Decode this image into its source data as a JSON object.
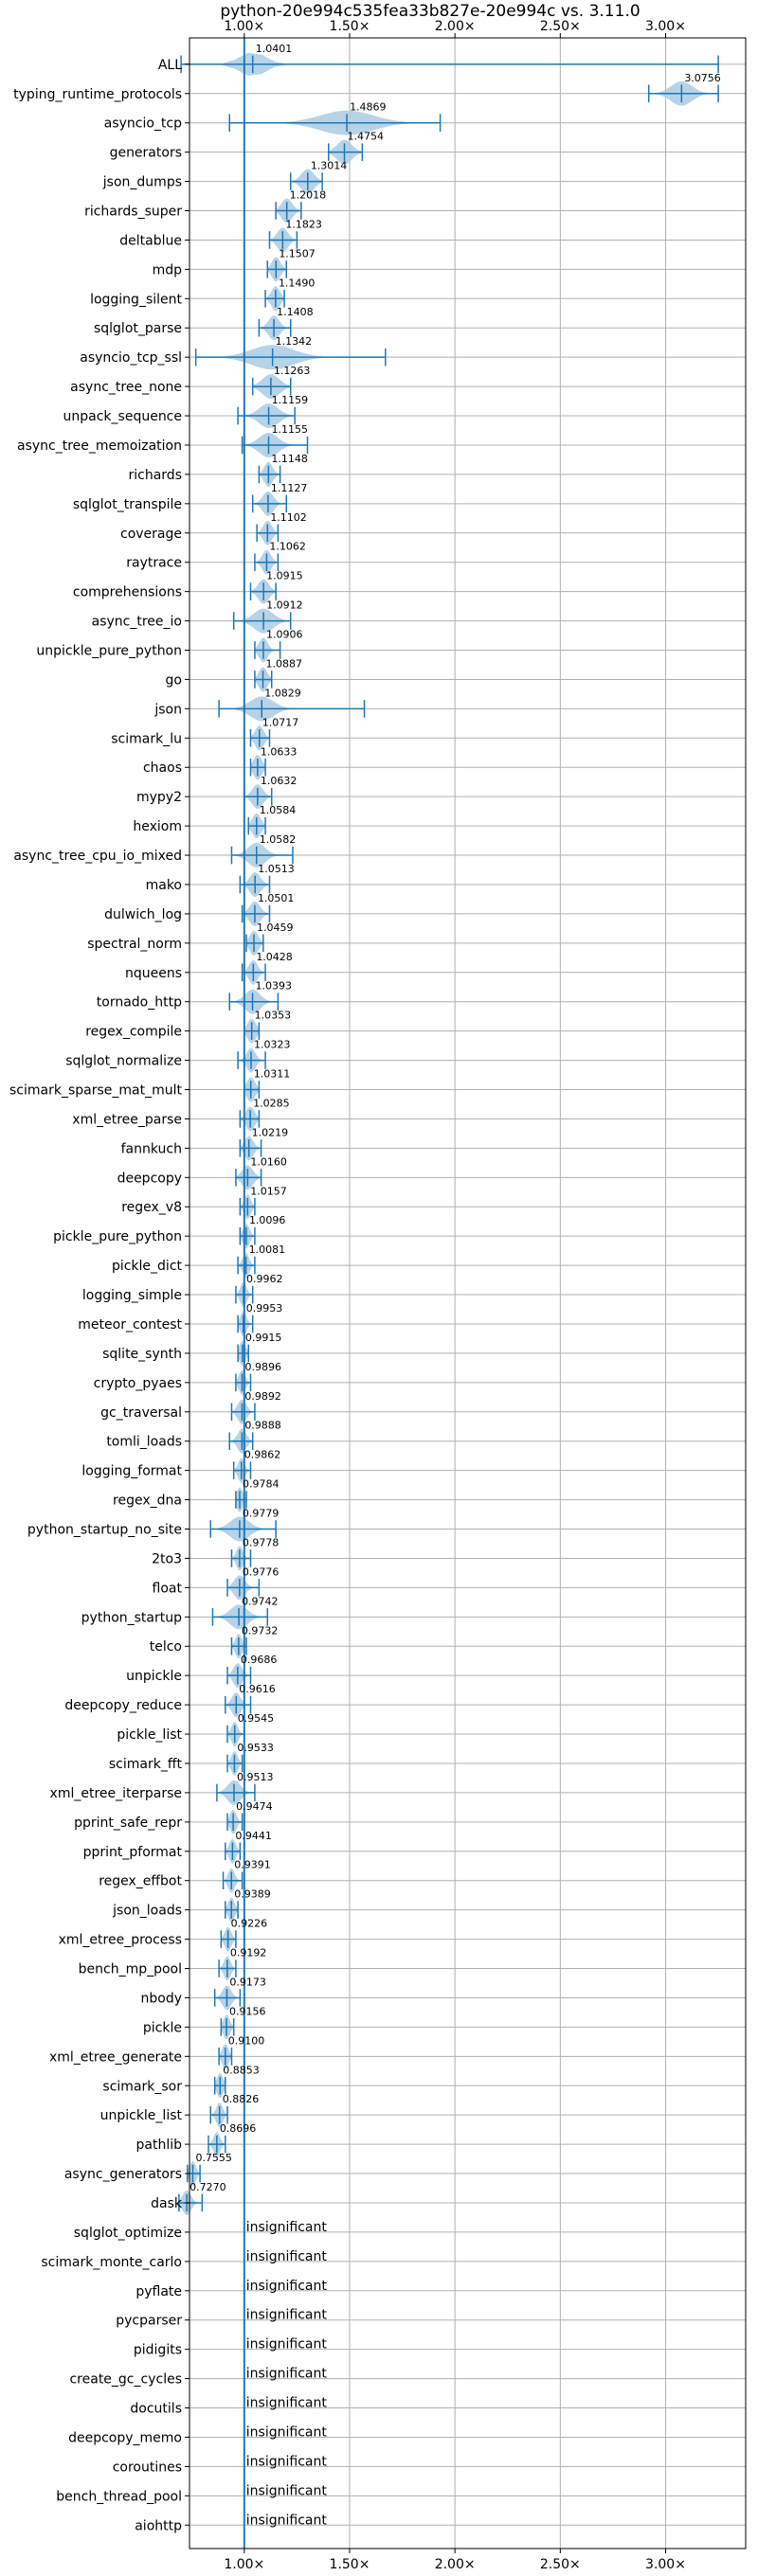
{
  "chart_data": {
    "type": "violin",
    "title": "python-20e994c535fea33b827e-20e994c vs. 3.11.0",
    "xlabel": "",
    "ylabel": "",
    "xlim": [
      0.74,
      3.38
    ],
    "x_ticks": [
      {
        "value": 1.0,
        "label": "1.00×"
      },
      {
        "value": 1.5,
        "label": "1.50×"
      },
      {
        "value": 2.0,
        "label": "2.00×"
      },
      {
        "value": 2.5,
        "label": "2.50×"
      },
      {
        "value": 3.0,
        "label": "3.00×"
      }
    ],
    "grid": true,
    "reference_line": 1.0,
    "accent_color": "#1f77b4",
    "violin_fill": "#aacbe4",
    "insignificant_label": "insignificant",
    "benchmarks": [
      {
        "name": "ALL",
        "mean": 1.0401,
        "min": 0.7,
        "max": 3.25,
        "spread": 0.12
      },
      {
        "name": "typing_runtime_protocols",
        "mean": 3.0756,
        "min": 2.92,
        "max": 3.25,
        "spread": 0.1
      },
      {
        "name": "asyncio_tcp",
        "mean": 1.4869,
        "min": 0.93,
        "max": 1.93,
        "spread": 0.25
      },
      {
        "name": "generators",
        "mean": 1.4754,
        "min": 1.4,
        "max": 1.56,
        "spread": 0.07
      },
      {
        "name": "json_dumps",
        "mean": 1.3014,
        "min": 1.22,
        "max": 1.37,
        "spread": 0.06
      },
      {
        "name": "richards_super",
        "mean": 1.2018,
        "min": 1.15,
        "max": 1.27,
        "spread": 0.05
      },
      {
        "name": "deltablue",
        "mean": 1.1823,
        "min": 1.12,
        "max": 1.25,
        "spread": 0.05
      },
      {
        "name": "mdp",
        "mean": 1.1507,
        "min": 1.11,
        "max": 1.2,
        "spread": 0.04
      },
      {
        "name": "logging_silent",
        "mean": 1.149,
        "min": 1.1,
        "max": 1.19,
        "spread": 0.04
      },
      {
        "name": "sqlglot_parse",
        "mean": 1.1408,
        "min": 1.07,
        "max": 1.22,
        "spread": 0.05
      },
      {
        "name": "asyncio_tcp_ssl",
        "mean": 1.1342,
        "min": 0.77,
        "max": 1.67,
        "spread": 0.2
      },
      {
        "name": "async_tree_none",
        "mean": 1.1263,
        "min": 1.04,
        "max": 1.22,
        "spread": 0.08
      },
      {
        "name": "unpack_sequence",
        "mean": 1.1159,
        "min": 0.97,
        "max": 1.24,
        "spread": 0.09
      },
      {
        "name": "async_tree_memoization",
        "mean": 1.1155,
        "min": 0.99,
        "max": 1.3,
        "spread": 0.09
      },
      {
        "name": "richards",
        "mean": 1.1148,
        "min": 1.07,
        "max": 1.17,
        "spread": 0.04
      },
      {
        "name": "sqlglot_transpile",
        "mean": 1.1127,
        "min": 1.04,
        "max": 1.2,
        "spread": 0.05
      },
      {
        "name": "coverage",
        "mean": 1.1102,
        "min": 1.06,
        "max": 1.16,
        "spread": 0.04
      },
      {
        "name": "raytrace",
        "mean": 1.1062,
        "min": 1.05,
        "max": 1.16,
        "spread": 0.04
      },
      {
        "name": "comprehensions",
        "mean": 1.0915,
        "min": 1.03,
        "max": 1.15,
        "spread": 0.05
      },
      {
        "name": "async_tree_io",
        "mean": 1.0912,
        "min": 0.95,
        "max": 1.22,
        "spread": 0.09
      },
      {
        "name": "unpickle_pure_python",
        "mean": 1.0906,
        "min": 1.05,
        "max": 1.17,
        "spread": 0.04
      },
      {
        "name": "go",
        "mean": 1.0887,
        "min": 1.05,
        "max": 1.13,
        "spread": 0.04
      },
      {
        "name": "json",
        "mean": 1.0829,
        "min": 0.88,
        "max": 1.57,
        "spread": 0.11
      },
      {
        "name": "scimark_lu",
        "mean": 1.0717,
        "min": 1.03,
        "max": 1.12,
        "spread": 0.04
      },
      {
        "name": "chaos",
        "mean": 1.0633,
        "min": 1.03,
        "max": 1.1,
        "spread": 0.04
      },
      {
        "name": "mypy2",
        "mean": 1.0632,
        "min": 1.0,
        "max": 1.13,
        "spread": 0.05
      },
      {
        "name": "hexiom",
        "mean": 1.0584,
        "min": 1.02,
        "max": 1.1,
        "spread": 0.04
      },
      {
        "name": "async_tree_cpu_io_mixed",
        "mean": 1.0582,
        "min": 0.94,
        "max": 1.23,
        "spread": 0.08
      },
      {
        "name": "mako",
        "mean": 1.0513,
        "min": 0.98,
        "max": 1.12,
        "spread": 0.05
      },
      {
        "name": "dulwich_log",
        "mean": 1.0501,
        "min": 0.99,
        "max": 1.12,
        "spread": 0.05
      },
      {
        "name": "spectral_norm",
        "mean": 1.0459,
        "min": 1.01,
        "max": 1.09,
        "spread": 0.04
      },
      {
        "name": "nqueens",
        "mean": 1.0428,
        "min": 0.99,
        "max": 1.1,
        "spread": 0.04
      },
      {
        "name": "tornado_http",
        "mean": 1.0393,
        "min": 0.93,
        "max": 1.16,
        "spread": 0.07
      },
      {
        "name": "regex_compile",
        "mean": 1.0353,
        "min": 1.0,
        "max": 1.07,
        "spread": 0.04
      },
      {
        "name": "sqlglot_normalize",
        "mean": 1.0323,
        "min": 0.97,
        "max": 1.1,
        "spread": 0.04
      },
      {
        "name": "scimark_sparse_mat_mult",
        "mean": 1.0311,
        "min": 1.0,
        "max": 1.07,
        "spread": 0.04
      },
      {
        "name": "xml_etree_parse",
        "mean": 1.0285,
        "min": 0.98,
        "max": 1.07,
        "spread": 0.04
      },
      {
        "name": "fannkuch",
        "mean": 1.0219,
        "min": 0.98,
        "max": 1.08,
        "spread": 0.04
      },
      {
        "name": "deepcopy",
        "mean": 1.016,
        "min": 0.96,
        "max": 1.08,
        "spread": 0.05
      },
      {
        "name": "regex_v8",
        "mean": 1.0157,
        "min": 0.98,
        "max": 1.05,
        "spread": 0.03
      },
      {
        "name": "pickle_pure_python",
        "mean": 1.0096,
        "min": 0.98,
        "max": 1.05,
        "spread": 0.03
      },
      {
        "name": "pickle_dict",
        "mean": 1.0081,
        "min": 0.97,
        "max": 1.05,
        "spread": 0.03
      },
      {
        "name": "logging_simple",
        "mean": 0.9962,
        "min": 0.96,
        "max": 1.04,
        "spread": 0.03
      },
      {
        "name": "meteor_contest",
        "mean": 0.9953,
        "min": 0.97,
        "max": 1.04,
        "spread": 0.03
      },
      {
        "name": "sqlite_synth",
        "mean": 0.9915,
        "min": 0.97,
        "max": 1.02,
        "spread": 0.03
      },
      {
        "name": "crypto_pyaes",
        "mean": 0.9896,
        "min": 0.96,
        "max": 1.03,
        "spread": 0.03
      },
      {
        "name": "gc_traversal",
        "mean": 0.9892,
        "min": 0.94,
        "max": 1.05,
        "spread": 0.04
      },
      {
        "name": "tomli_loads",
        "mean": 0.9888,
        "min": 0.93,
        "max": 1.04,
        "spread": 0.04
      },
      {
        "name": "logging_format",
        "mean": 0.9862,
        "min": 0.95,
        "max": 1.03,
        "spread": 0.03
      },
      {
        "name": "regex_dna",
        "mean": 0.9784,
        "min": 0.96,
        "max": 1.01,
        "spread": 0.03
      },
      {
        "name": "python_startup_no_site",
        "mean": 0.9779,
        "min": 0.84,
        "max": 1.15,
        "spread": 0.09
      },
      {
        "name": "2to3",
        "mean": 0.9778,
        "min": 0.94,
        "max": 1.03,
        "spread": 0.03
      },
      {
        "name": "float",
        "mean": 0.9776,
        "min": 0.92,
        "max": 1.07,
        "spread": 0.05
      },
      {
        "name": "python_startup",
        "mean": 0.9742,
        "min": 0.85,
        "max": 1.11,
        "spread": 0.08
      },
      {
        "name": "telco",
        "mean": 0.9732,
        "min": 0.94,
        "max": 1.01,
        "spread": 0.03
      },
      {
        "name": "unpickle",
        "mean": 0.9686,
        "min": 0.92,
        "max": 1.03,
        "spread": 0.04
      },
      {
        "name": "deepcopy_reduce",
        "mean": 0.9616,
        "min": 0.91,
        "max": 1.03,
        "spread": 0.04
      },
      {
        "name": "pickle_list",
        "mean": 0.9545,
        "min": 0.92,
        "max": 1.0,
        "spread": 0.03
      },
      {
        "name": "scimark_fft",
        "mean": 0.9533,
        "min": 0.92,
        "max": 0.99,
        "spread": 0.03
      },
      {
        "name": "xml_etree_iterparse",
        "mean": 0.9513,
        "min": 0.87,
        "max": 1.05,
        "spread": 0.06
      },
      {
        "name": "pprint_safe_repr",
        "mean": 0.9474,
        "min": 0.92,
        "max": 0.99,
        "spread": 0.03
      },
      {
        "name": "pprint_pformat",
        "mean": 0.9441,
        "min": 0.91,
        "max": 0.98,
        "spread": 0.03
      },
      {
        "name": "regex_effbot",
        "mean": 0.9391,
        "min": 0.9,
        "max": 0.99,
        "spread": 0.03
      },
      {
        "name": "json_loads",
        "mean": 0.9389,
        "min": 0.91,
        "max": 0.97,
        "spread": 0.03
      },
      {
        "name": "xml_etree_process",
        "mean": 0.9226,
        "min": 0.89,
        "max": 0.96,
        "spread": 0.03
      },
      {
        "name": "bench_mp_pool",
        "mean": 0.9192,
        "min": 0.88,
        "max": 0.96,
        "spread": 0.03
      },
      {
        "name": "nbody",
        "mean": 0.9173,
        "min": 0.86,
        "max": 0.98,
        "spread": 0.04
      },
      {
        "name": "pickle",
        "mean": 0.9156,
        "min": 0.89,
        "max": 0.95,
        "spread": 0.03
      },
      {
        "name": "xml_etree_generate",
        "mean": 0.91,
        "min": 0.88,
        "max": 0.94,
        "spread": 0.03
      },
      {
        "name": "scimark_sor",
        "mean": 0.8853,
        "min": 0.86,
        "max": 0.91,
        "spread": 0.03
      },
      {
        "name": "unpickle_list",
        "mean": 0.8826,
        "min": 0.84,
        "max": 0.92,
        "spread": 0.03
      },
      {
        "name": "pathlib",
        "mean": 0.8696,
        "min": 0.83,
        "max": 0.91,
        "spread": 0.03
      },
      {
        "name": "async_generators",
        "mean": 0.7555,
        "min": 0.73,
        "max": 0.79,
        "spread": 0.03
      },
      {
        "name": "dask",
        "mean": 0.727,
        "min": 0.69,
        "max": 0.8,
        "spread": 0.04
      },
      {
        "name": "sqlglot_optimize",
        "insignificant": true
      },
      {
        "name": "scimark_monte_carlo",
        "insignificant": true
      },
      {
        "name": "pyflate",
        "insignificant": true
      },
      {
        "name": "pycparser",
        "insignificant": true
      },
      {
        "name": "pidigits",
        "insignificant": true
      },
      {
        "name": "create_gc_cycles",
        "insignificant": true
      },
      {
        "name": "docutils",
        "insignificant": true
      },
      {
        "name": "deepcopy_memo",
        "insignificant": true
      },
      {
        "name": "coroutines",
        "insignificant": true
      },
      {
        "name": "bench_thread_pool",
        "insignificant": true
      },
      {
        "name": "aiohttp",
        "insignificant": true
      }
    ]
  }
}
